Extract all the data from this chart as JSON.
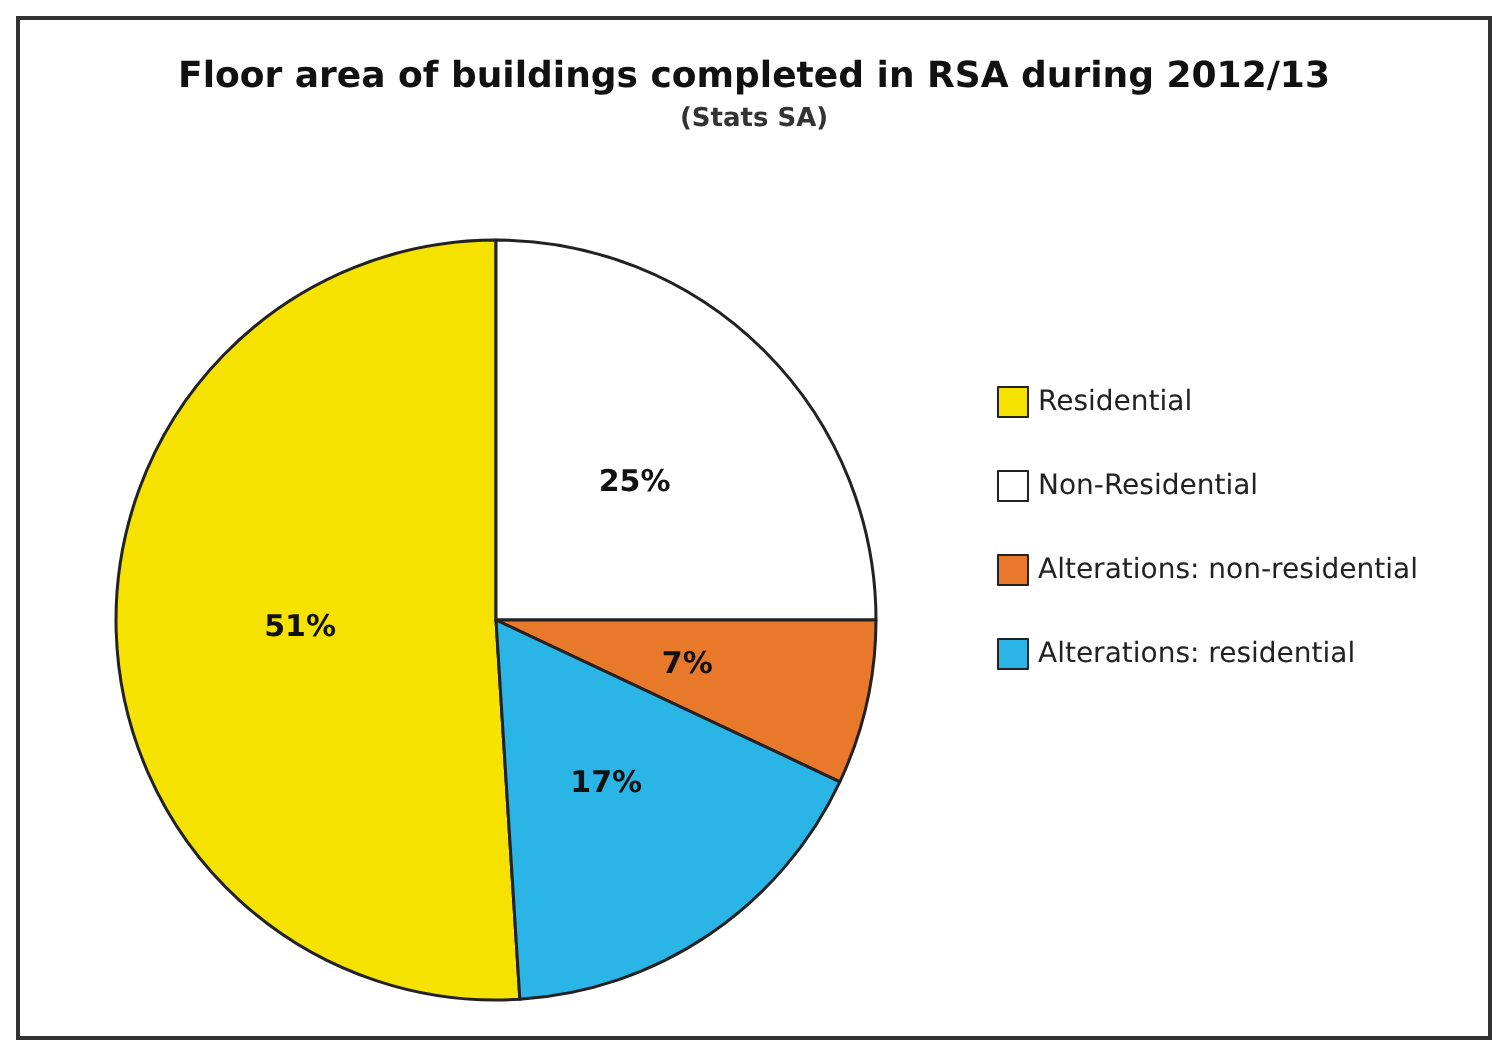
{
  "chart_data": {
    "type": "pie",
    "title": "Floor area of buildings completed in RSA during 2012/13",
    "subtitle": "(Stats SA)",
    "categories": [
      "Residential",
      "Non-Residential",
      "Alterations: non-residential",
      "Alterations: residential"
    ],
    "values": [
      51,
      25,
      7,
      17
    ],
    "colors": [
      "#f5e200",
      "#ffffff",
      "#e8782a",
      "#2bb4e6"
    ],
    "value_labels": [
      "51%",
      "25%",
      "7%",
      "17%"
    ],
    "legend": "right"
  }
}
